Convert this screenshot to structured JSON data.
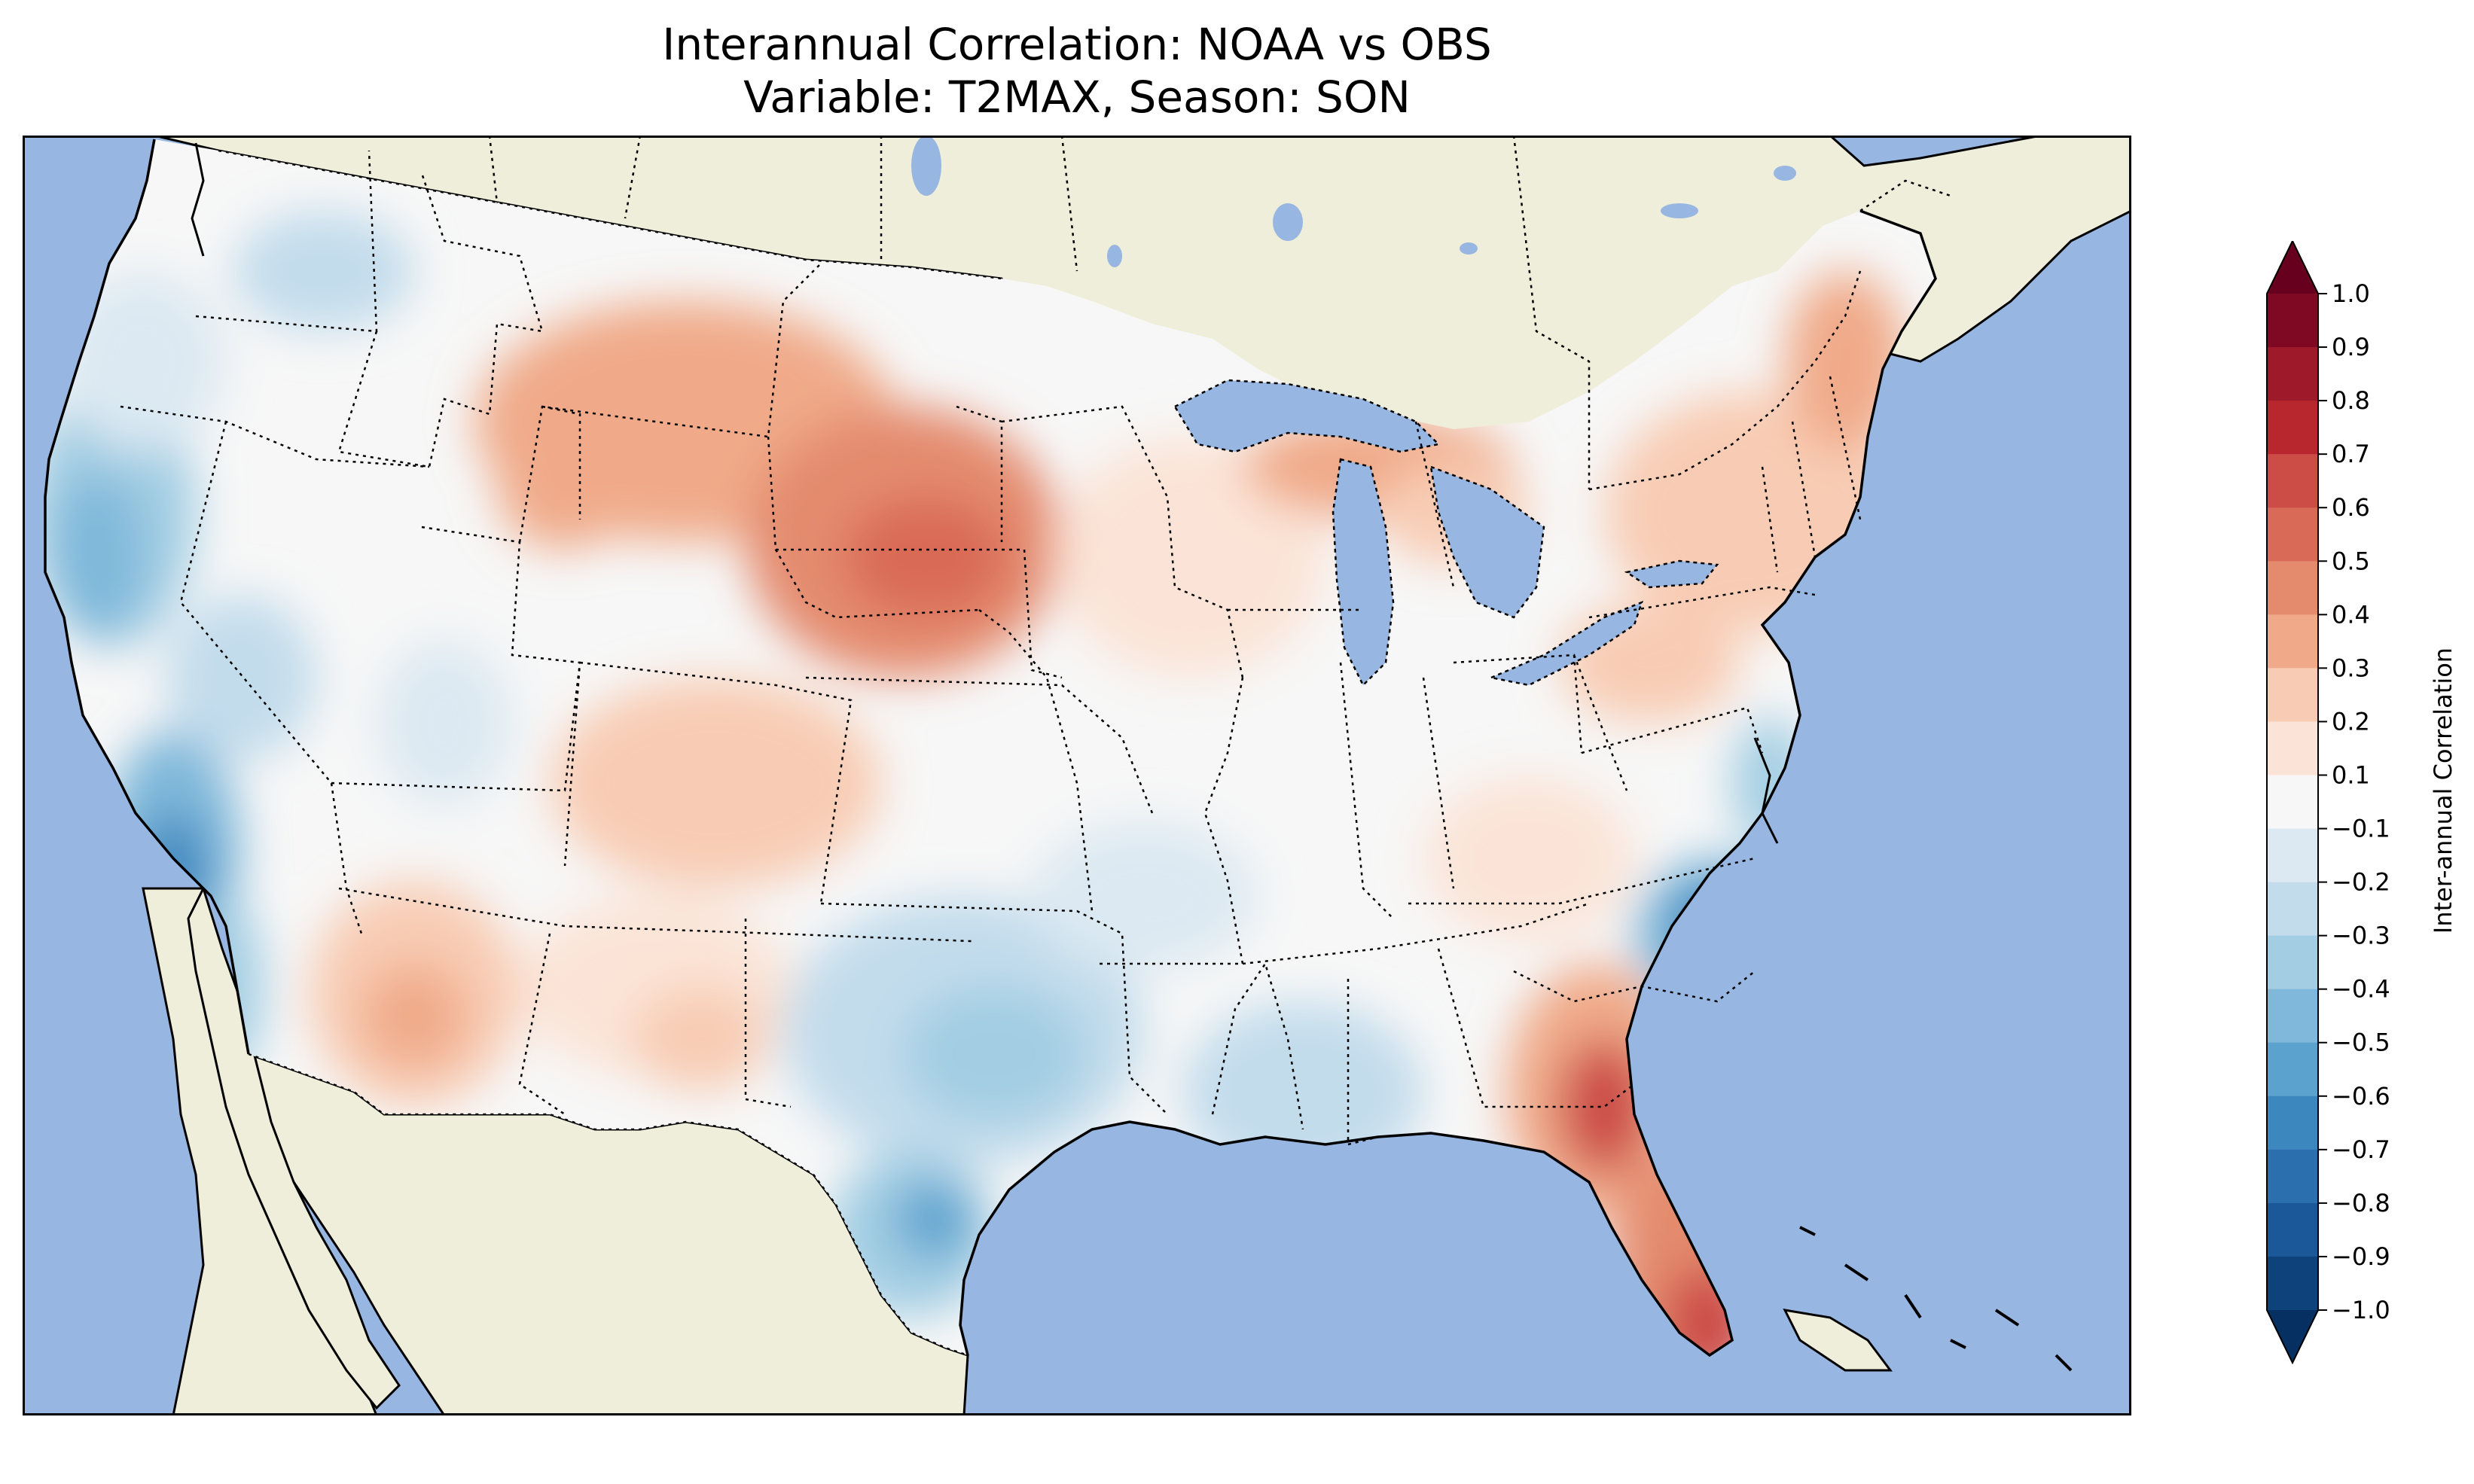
{
  "title": {
    "line1": "Interannual Correlation: NOAA vs OBS",
    "line2": "Variable: T2MAX, Season: SON"
  },
  "colorbar": {
    "label": "Inter-annual Correlation",
    "ticks": [
      "1.0",
      "0.9",
      "0.8",
      "0.7",
      "0.6",
      "0.5",
      "0.4",
      "0.3",
      "0.2",
      "0.1",
      "−0.1",
      "−0.2",
      "−0.3",
      "−0.4",
      "−0.5",
      "−0.6",
      "−0.7",
      "−0.8",
      "−0.9",
      "−1.0"
    ],
    "colors": [
      "#67001f",
      "#7f0823",
      "#9e1a2b",
      "#b8272e",
      "#cc4c46",
      "#d96a57",
      "#e48b6e",
      "#f0aa89",
      "#f8ccb4",
      "#fbe4d7",
      "#f7f7f7",
      "#dce9f2",
      "#c2dcec",
      "#a2cde3",
      "#7fb8da",
      "#5ba2cf",
      "#3d87bf",
      "#2c6fae",
      "#1b589a",
      "#0e427a",
      "#053061"
    ],
    "extend": "both"
  },
  "map": {
    "ocean_color": "#97b6e1",
    "land_color": "#efeedb",
    "lake_color": "#97b6e1",
    "projection": "lambert-conformal",
    "region": "contiguous-united-states"
  }
}
